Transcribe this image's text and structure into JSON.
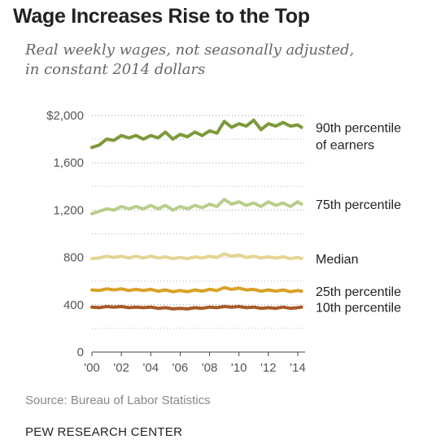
{
  "title": "Wage Increases Rise to the Top",
  "subtitle": [
    "Real weekly wages, not seasonally adjusted,",
    "in constant 2014 dollars"
  ],
  "source": "Source: Bureau of Labor Statistics",
  "brand": "PEW RESEARCH CENTER",
  "chart_data": {
    "type": "line",
    "title": "Wage Increases Rise to the Top",
    "xlabel": "",
    "ylabel": "",
    "xlim": [
      2000,
      2014.5
    ],
    "ylim": [
      0,
      2000
    ],
    "y_ticks": [
      0,
      400,
      800,
      1200,
      1600,
      2000
    ],
    "y_tick_labels": [
      "0",
      "400",
      "800",
      "1,200",
      "1,600",
      "$2,000"
    ],
    "x_ticks": [
      2000,
      2002,
      2004,
      2006,
      2008,
      2010,
      2012,
      2014
    ],
    "x_tick_labels": [
      "'00",
      "'02",
      "'04",
      "'06",
      "'08",
      "'10",
      "'12",
      "'14"
    ],
    "grid": "horizontal dotted",
    "x": [
      2000,
      2000.5,
      2001,
      2001.5,
      2002,
      2002.5,
      2003,
      2003.5,
      2004,
      2004.5,
      2005,
      2005.5,
      2006,
      2006.5,
      2007,
      2007.5,
      2008,
      2008.5,
      2009,
      2009.5,
      2010,
      2010.5,
      2011,
      2011.5,
      2012,
      2012.5,
      2013,
      2013.5,
      2014,
      2014.25
    ],
    "series": [
      {
        "name": "90th percentile of earners",
        "label_lines": [
          "90th percentile",
          "of earners"
        ],
        "color": "#7d9a3b",
        "values": [
          1730,
          1750,
          1800,
          1790,
          1830,
          1810,
          1830,
          1800,
          1830,
          1810,
          1860,
          1800,
          1840,
          1820,
          1860,
          1830,
          1870,
          1850,
          1950,
          1900,
          1930,
          1910,
          1960,
          1880,
          1930,
          1910,
          1940,
          1910,
          1920,
          1900
        ]
      },
      {
        "name": "75th percentile",
        "label_lines": [
          "75th percentile"
        ],
        "color": "#b9ce8b",
        "values": [
          1170,
          1190,
          1210,
          1200,
          1230,
          1210,
          1230,
          1210,
          1240,
          1210,
          1240,
          1200,
          1230,
          1210,
          1240,
          1220,
          1250,
          1230,
          1290,
          1250,
          1270,
          1240,
          1260,
          1230,
          1270,
          1240,
          1260,
          1230,
          1270,
          1250
        ]
      },
      {
        "name": "Median",
        "label_lines": [
          "Median"
        ],
        "color": "#e5d494",
        "values": [
          790,
          795,
          810,
          800,
          810,
          795,
          810,
          795,
          810,
          795,
          805,
          790,
          800,
          790,
          805,
          795,
          810,
          800,
          830,
          810,
          820,
          800,
          810,
          795,
          805,
          795,
          805,
          790,
          800,
          790
        ]
      },
      {
        "name": "25th percentile",
        "label_lines": [
          "25th percentile"
        ],
        "color": "#d9a227",
        "values": [
          525,
          520,
          535,
          525,
          535,
          520,
          530,
          520,
          530,
          515,
          525,
          510,
          520,
          510,
          525,
          515,
          530,
          520,
          545,
          530,
          540,
          525,
          530,
          515,
          525,
          515,
          525,
          510,
          520,
          515
        ]
      },
      {
        "name": "10th percentile",
        "label_lines": [
          "10th percentile"
        ],
        "color": "#a85a26",
        "values": [
          380,
          375,
          385,
          380,
          385,
          375,
          380,
          375,
          380,
          370,
          375,
          365,
          370,
          365,
          375,
          370,
          380,
          375,
          385,
          380,
          385,
          375,
          380,
          370,
          375,
          370,
          380,
          370,
          375,
          380
        ]
      }
    ]
  }
}
